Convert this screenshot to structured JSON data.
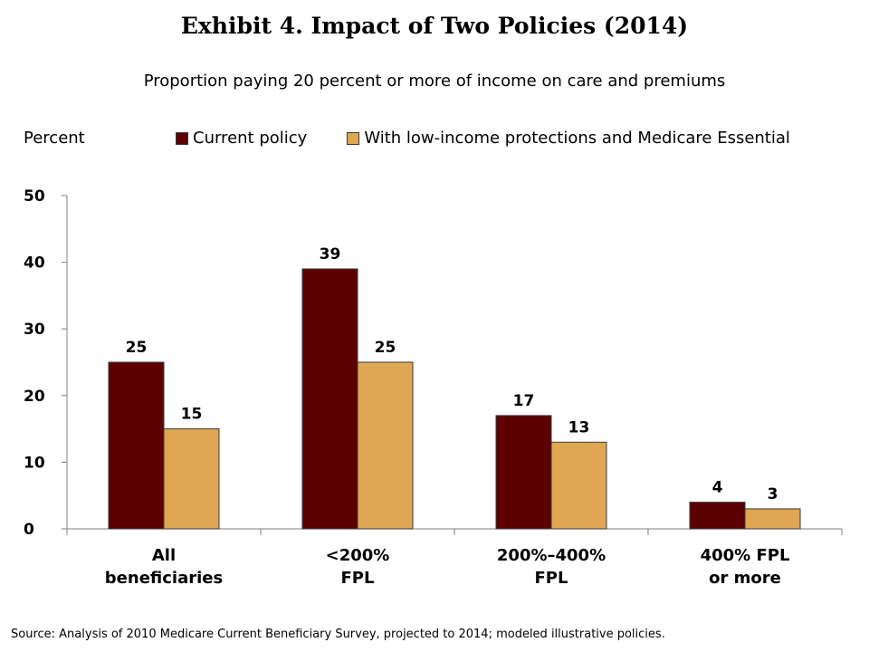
{
  "chart_data": {
    "type": "bar",
    "title": "Exhibit 4. Impact of Two Policies (2014)",
    "subtitle": "Proportion paying 20 percent or more of income on care and premiums",
    "ylabel": "Percent",
    "xlabel": "",
    "ylim": [
      0,
      50
    ],
    "yticks": [
      0,
      10,
      20,
      30,
      40,
      50
    ],
    "categories": [
      [
        "All",
        "beneficiaries"
      ],
      [
        "<200%",
        "FPL"
      ],
      [
        "200%–400%",
        "FPL"
      ],
      [
        "400% FPL",
        "or more"
      ]
    ],
    "series": [
      {
        "name": "Current policy",
        "color": "#5c0000",
        "values": [
          25,
          39,
          17,
          4
        ]
      },
      {
        "name": "With low-income protections and Medicare Essential",
        "color": "#dfa753",
        "values": [
          15,
          25,
          13,
          3
        ]
      }
    ],
    "grid": false,
    "legend_position": "top"
  },
  "source": "Source: Analysis of 2010 Medicare Current Beneficiary Survey, projected to 2014; modeled illustrative policies."
}
